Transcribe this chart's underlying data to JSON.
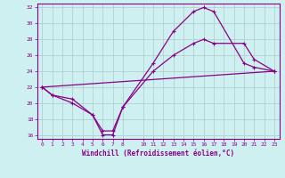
{
  "xlabel": "Windchill (Refroidissement éolien,°C)",
  "background_color": "#cff0f0",
  "grid_color": "#b0c8c8",
  "line_color": "#880088",
  "xlim": [
    -0.5,
    23.5
  ],
  "ylim": [
    15.5,
    32.5
  ],
  "xticks": [
    0,
    1,
    2,
    3,
    4,
    5,
    6,
    7,
    8,
    10,
    11,
    12,
    13,
    14,
    15,
    16,
    17,
    18,
    19,
    20,
    21,
    22,
    23
  ],
  "yticks": [
    16,
    18,
    20,
    22,
    24,
    26,
    28,
    30,
    32
  ],
  "curve1_x": [
    0,
    1,
    3,
    5,
    6,
    7,
    8,
    11,
    13,
    15,
    16,
    17,
    20,
    21,
    23
  ],
  "curve1_y": [
    22,
    21,
    20,
    18.5,
    16,
    16,
    19.5,
    25,
    29,
    31.5,
    32,
    31.5,
    25,
    24.5,
    24
  ],
  "curve2_x": [
    0,
    1,
    3,
    5,
    6,
    7,
    8,
    11,
    13,
    15,
    16,
    17,
    20,
    21,
    23
  ],
  "curve2_y": [
    22,
    21,
    20.5,
    18.5,
    16.5,
    16.5,
    19.5,
    24,
    26,
    27.5,
    28,
    27.5,
    27.5,
    25.5,
    24
  ],
  "curve3_x": [
    0,
    23
  ],
  "curve3_y": [
    22,
    24
  ]
}
